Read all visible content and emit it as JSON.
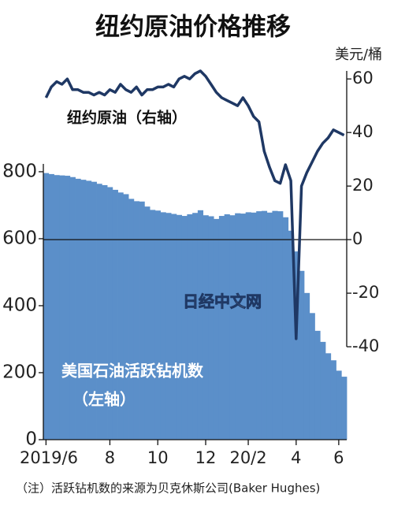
{
  "chart_data": {
    "type": "bar-line",
    "title": "纽约原油价格推移",
    "y2_label": "美元/桶",
    "annotations": [
      "纽约原油（右轴）",
      "美国石油活跃钻机数",
      "（左轴）",
      "日经中文网"
    ],
    "note": "（注）活跃钻机数的来源为贝克休斯公司(Baker Hughes)",
    "categories": [
      "2019/6",
      null,
      null,
      null,
      null,
      null,
      null,
      null,
      null,
      null,
      null,
      null,
      "8",
      null,
      null,
      null,
      null,
      null,
      null,
      null,
      null,
      "10",
      null,
      null,
      null,
      null,
      null,
      null,
      null,
      null,
      "12",
      null,
      null,
      null,
      null,
      null,
      null,
      null,
      "20/2",
      null,
      null,
      null,
      null,
      null,
      null,
      null,
      null,
      "4",
      null,
      null,
      null,
      null,
      null,
      null,
      null,
      "6",
      null
    ],
    "series": [
      {
        "name": "美国石油活跃钻机数",
        "color": "#5b8fc9",
        "type": "bar",
        "values": [
          796,
          793,
          790,
          789,
          788,
          784,
          779,
          776,
          773,
          770,
          764,
          760,
          754,
          746,
          738,
          733,
          719,
          712,
          711,
          696,
          686,
          684,
          679,
          677,
          674,
          671,
          668,
          673,
          677,
          685,
          670,
          667,
          659,
          668,
          673,
          670,
          676,
          675,
          679,
          678,
          682,
          683,
          678,
          683,
          682,
          664,
          624,
          562,
          504,
          438,
          378,
          325,
          292,
          258,
          237,
          206,
          188
        ]
      },
      {
        "name": "纽约原油",
        "color": "#1f3864",
        "type": "line",
        "axis": "y2",
        "values": [
          53,
          57,
          59,
          58,
          60,
          56,
          56,
          55,
          55,
          54,
          55,
          54,
          56,
          55,
          58,
          56,
          55,
          57,
          54,
          56,
          56,
          57,
          57,
          58,
          57,
          60,
          61,
          60,
          62,
          63,
          61,
          58,
          55,
          53,
          52,
          51,
          50,
          53,
          50,
          46,
          44,
          33,
          27,
          22,
          21,
          28,
          22,
          -37,
          20,
          25,
          29,
          33,
          36,
          38,
          41,
          40,
          39
        ]
      }
    ],
    "ylim": [
      0,
      1101
    ],
    "yticks": [
      0,
      200,
      400,
      600,
      800
    ],
    "y2lim": [
      -74.7,
      63
    ],
    "y2ticks": [
      60,
      40,
      20,
      0,
      -20,
      -40
    ]
  }
}
